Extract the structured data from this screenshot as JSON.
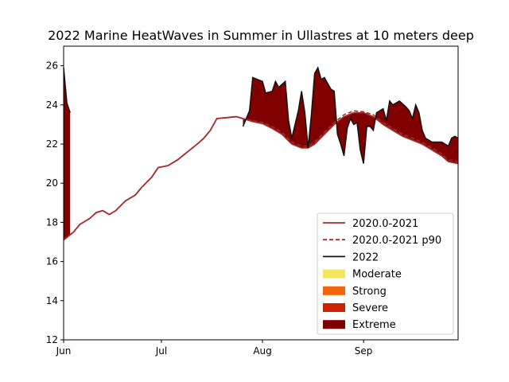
{
  "chart_data": {
    "type": "line",
    "title": "2022 Marine HeatWaves in Summer in Ullastres at 10 meters deep",
    "xlabel": "",
    "ylabel": "",
    "ylim": [
      12,
      27
    ],
    "xlim": [
      "2022-06-01",
      "2022-09-30"
    ],
    "x_ticks": [
      {
        "date": "2022-06-01",
        "label": "Jun"
      },
      {
        "date": "2022-07-01",
        "label": "Jul"
      },
      {
        "date": "2022-08-01",
        "label": "Aug"
      },
      {
        "date": "2022-09-01",
        "label": "Sep"
      }
    ],
    "y_ticks": [
      12,
      14,
      16,
      18,
      20,
      22,
      24,
      26
    ],
    "grid": false,
    "legend_position": "lower-right",
    "legend": [
      {
        "label": "2020.0-2021",
        "kind": "line",
        "color": "#a52a2a"
      },
      {
        "label": "2020.0-2021 p90",
        "kind": "dashed",
        "color": "#a52a2a"
      },
      {
        "label": "2022",
        "kind": "line",
        "color": "#111111"
      },
      {
        "label": "Moderate",
        "kind": "patch",
        "color": "#f6e45a"
      },
      {
        "label": "Strong",
        "kind": "patch",
        "color": "#f2650a"
      },
      {
        "label": "Severe",
        "kind": "patch",
        "color": "#cc2200"
      },
      {
        "label": "Extreme",
        "kind": "patch",
        "color": "#800000"
      }
    ],
    "series": [
      {
        "name": "2020.0-2021",
        "style": "solid",
        "color": "#a52a2a",
        "points": [
          [
            "2022-06-01",
            17.1
          ],
          [
            "2022-06-04",
            17.5
          ],
          [
            "2022-06-06",
            17.9
          ],
          [
            "2022-06-09",
            18.2
          ],
          [
            "2022-06-11",
            18.5
          ],
          [
            "2022-06-13",
            18.6
          ],
          [
            "2022-06-15",
            18.4
          ],
          [
            "2022-06-17",
            18.6
          ],
          [
            "2022-06-20",
            19.1
          ],
          [
            "2022-06-23",
            19.4
          ],
          [
            "2022-06-25",
            19.8
          ],
          [
            "2022-06-28",
            20.3
          ],
          [
            "2022-06-30",
            20.8
          ],
          [
            "2022-07-03",
            20.9
          ],
          [
            "2022-07-06",
            21.2
          ],
          [
            "2022-07-09",
            21.6
          ],
          [
            "2022-07-12",
            22.0
          ],
          [
            "2022-07-14",
            22.3
          ],
          [
            "2022-07-16",
            22.7
          ],
          [
            "2022-07-18",
            23.3
          ],
          [
            "2022-07-21",
            23.35
          ],
          [
            "2022-07-24",
            23.4
          ],
          [
            "2022-07-26",
            23.3
          ],
          [
            "2022-07-29",
            23.15
          ],
          [
            "2022-08-01",
            23.05
          ],
          [
            "2022-08-04",
            22.8
          ],
          [
            "2022-08-07",
            22.5
          ],
          [
            "2022-08-10",
            22.0
          ],
          [
            "2022-08-13",
            21.8
          ],
          [
            "2022-08-15",
            21.8
          ],
          [
            "2022-08-17",
            22.0
          ],
          [
            "2022-08-20",
            22.5
          ],
          [
            "2022-08-23",
            23.0
          ],
          [
            "2022-08-26",
            23.4
          ],
          [
            "2022-08-29",
            23.6
          ],
          [
            "2022-09-01",
            23.6
          ],
          [
            "2022-09-04",
            23.4
          ],
          [
            "2022-09-07",
            23.0
          ],
          [
            "2022-09-10",
            22.7
          ],
          [
            "2022-09-13",
            22.4
          ],
          [
            "2022-09-16",
            22.2
          ],
          [
            "2022-09-19",
            22.0
          ],
          [
            "2022-09-22",
            21.7
          ],
          [
            "2022-09-25",
            21.4
          ],
          [
            "2022-09-27",
            21.1
          ],
          [
            "2022-09-30",
            21.0
          ]
        ]
      },
      {
        "name": "2020.0-2021 p90",
        "style": "dashed",
        "color": "#a52a2a",
        "points": [
          [
            "2022-06-01",
            17.1
          ],
          [
            "2022-06-04",
            17.5
          ],
          [
            "2022-06-06",
            17.9
          ],
          [
            "2022-06-09",
            18.2
          ],
          [
            "2022-06-11",
            18.5
          ],
          [
            "2022-06-13",
            18.6
          ],
          [
            "2022-06-15",
            18.4
          ],
          [
            "2022-06-17",
            18.6
          ],
          [
            "2022-06-20",
            19.1
          ],
          [
            "2022-06-23",
            19.4
          ],
          [
            "2022-06-25",
            19.8
          ],
          [
            "2022-06-28",
            20.3
          ],
          [
            "2022-06-30",
            20.8
          ],
          [
            "2022-07-03",
            20.9
          ],
          [
            "2022-07-06",
            21.2
          ],
          [
            "2022-07-09",
            21.6
          ],
          [
            "2022-07-12",
            22.0
          ],
          [
            "2022-07-14",
            22.3
          ],
          [
            "2022-07-16",
            22.7
          ],
          [
            "2022-07-18",
            23.3
          ],
          [
            "2022-07-21",
            23.35
          ],
          [
            "2022-07-24",
            23.4
          ],
          [
            "2022-07-26",
            23.3
          ],
          [
            "2022-07-29",
            23.2
          ],
          [
            "2022-08-01",
            23.1
          ],
          [
            "2022-08-04",
            22.9
          ],
          [
            "2022-08-07",
            22.6
          ],
          [
            "2022-08-10",
            22.1
          ],
          [
            "2022-08-13",
            21.9
          ],
          [
            "2022-08-15",
            21.9
          ],
          [
            "2022-08-17",
            22.1
          ],
          [
            "2022-08-20",
            22.6
          ],
          [
            "2022-08-23",
            23.1
          ],
          [
            "2022-08-26",
            23.5
          ],
          [
            "2022-08-29",
            23.7
          ],
          [
            "2022-09-01",
            23.65
          ],
          [
            "2022-09-04",
            23.5
          ],
          [
            "2022-09-07",
            23.1
          ],
          [
            "2022-09-10",
            22.8
          ],
          [
            "2022-09-13",
            22.5
          ],
          [
            "2022-09-16",
            22.3
          ],
          [
            "2022-09-19",
            22.1
          ],
          [
            "2022-09-22",
            21.8
          ],
          [
            "2022-09-25",
            21.5
          ],
          [
            "2022-09-27",
            21.2
          ],
          [
            "2022-09-30",
            21.1
          ]
        ]
      },
      {
        "name": "2022",
        "style": "solid",
        "color": "#111111",
        "segments": [
          [
            [
              "2022-06-01",
              25.9
            ],
            [
              "2022-06-02",
              24.1
            ],
            [
              "2022-06-03",
              23.6
            ]
          ],
          [
            [
              "2022-07-26",
              22.9
            ],
            [
              "2022-07-28",
              23.7
            ],
            [
              "2022-07-29",
              25.4
            ],
            [
              "2022-08-01",
              25.2
            ],
            [
              "2022-08-02",
              24.6
            ],
            [
              "2022-08-04",
              24.7
            ],
            [
              "2022-08-05",
              25.2
            ],
            [
              "2022-08-06",
              24.9
            ],
            [
              "2022-08-08",
              25.2
            ],
            [
              "2022-08-09",
              23.2
            ],
            [
              "2022-08-10",
              22.3
            ],
            [
              "2022-08-11",
              23.0
            ],
            [
              "2022-08-12",
              23.7
            ],
            [
              "2022-08-13",
              24.7
            ],
            [
              "2022-08-14",
              23.6
            ],
            [
              "2022-08-15",
              21.8
            ],
            [
              "2022-08-16",
              23.5
            ],
            [
              "2022-08-17",
              25.6
            ],
            [
              "2022-08-18",
              25.9
            ],
            [
              "2022-08-19",
              25.3
            ],
            [
              "2022-08-20",
              25.4
            ],
            [
              "2022-08-22",
              24.8
            ],
            [
              "2022-08-23",
              24.7
            ],
            [
              "2022-08-24",
              22.5
            ],
            [
              "2022-08-25",
              22.0
            ],
            [
              "2022-08-26",
              21.4
            ],
            [
              "2022-08-27",
              22.8
            ],
            [
              "2022-08-28",
              23.3
            ],
            [
              "2022-08-29",
              23.0
            ],
            [
              "2022-08-30",
              23.1
            ],
            [
              "2022-08-31",
              21.7
            ],
            [
              "2022-09-01",
              21.0
            ],
            [
              "2022-09-02",
              22.9
            ],
            [
              "2022-09-03",
              22.9
            ],
            [
              "2022-09-04",
              22.7
            ],
            [
              "2022-09-05",
              23.6
            ],
            [
              "2022-09-07",
              23.8
            ],
            [
              "2022-09-08",
              23.2
            ],
            [
              "2022-09-09",
              24.2
            ],
            [
              "2022-09-10",
              24.0
            ],
            [
              "2022-09-12",
              24.2
            ],
            [
              "2022-09-14",
              23.9
            ],
            [
              "2022-09-15",
              23.7
            ],
            [
              "2022-09-16",
              23.3
            ],
            [
              "2022-09-17",
              24.0
            ],
            [
              "2022-09-18",
              23.6
            ],
            [
              "2022-09-19",
              22.7
            ],
            [
              "2022-09-20",
              22.3
            ],
            [
              "2022-09-22",
              22.1
            ],
            [
              "2022-09-25",
              22.1
            ],
            [
              "2022-09-27",
              21.9
            ],
            [
              "2022-09-28",
              22.3
            ],
            [
              "2022-09-29",
              22.4
            ],
            [
              "2022-09-30",
              22.3
            ]
          ]
        ]
      }
    ],
    "extreme_fill_color": "#800000"
  }
}
